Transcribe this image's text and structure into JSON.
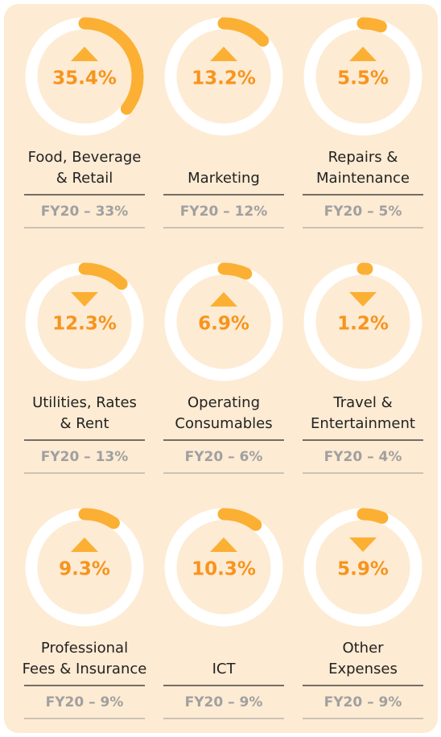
{
  "chart_data": [
    {
      "type": "gauge",
      "label": [
        "Food, Beverage",
        "& Retail"
      ],
      "value": 35.4,
      "value_label": "35.4%",
      "trend": "up",
      "footnote": "FY20 – 33%",
      "ylim": [
        0,
        100
      ],
      "color": "#fbb034"
    },
    {
      "type": "gauge",
      "label": [
        "Marketing"
      ],
      "value": 13.2,
      "value_label": "13.2%",
      "trend": "up",
      "footnote": "FY20 – 12%",
      "ylim": [
        0,
        100
      ],
      "color": "#fbb034"
    },
    {
      "type": "gauge",
      "label": [
        "Repairs &",
        "Maintenance"
      ],
      "value": 5.5,
      "value_label": "5.5%",
      "trend": "up",
      "footnote": "FY20 – 5%",
      "ylim": [
        0,
        100
      ],
      "color": "#fbb034"
    },
    {
      "type": "gauge",
      "label": [
        "Utilities, Rates",
        "& Rent"
      ],
      "value": 12.3,
      "value_label": "12.3%",
      "trend": "down",
      "footnote": "FY20 – 13%",
      "ylim": [
        0,
        100
      ],
      "color": "#fbb034"
    },
    {
      "type": "gauge",
      "label": [
        "Operating",
        "Consumables"
      ],
      "value": 6.9,
      "value_label": "6.9%",
      "trend": "up",
      "footnote": "FY20 – 6%",
      "ylim": [
        0,
        100
      ],
      "color": "#fbb034"
    },
    {
      "type": "gauge",
      "label": [
        "Travel &",
        "Entertainment"
      ],
      "value": 1.2,
      "value_label": "1.2%",
      "trend": "down",
      "footnote": "FY20 – 4%",
      "ylim": [
        0,
        100
      ],
      "color": "#fbb034"
    },
    {
      "type": "gauge",
      "label": [
        "Professional",
        "Fees & Insurance"
      ],
      "value": 9.3,
      "value_label": "9.3%",
      "trend": "up",
      "footnote": "FY20 – 9%",
      "ylim": [
        0,
        100
      ],
      "color": "#fbb034"
    },
    {
      "type": "gauge",
      "label": [
        "ICT"
      ],
      "value": 10.3,
      "value_label": "10.3%",
      "trend": "up",
      "footnote": "FY20 – 9%",
      "ylim": [
        0,
        100
      ],
      "color": "#fbb034"
    },
    {
      "type": "gauge",
      "label": [
        "Other",
        "Expenses"
      ],
      "value": 5.9,
      "value_label": "5.9%",
      "trend": "down",
      "footnote": "FY20 – 9%",
      "ylim": [
        0,
        100
      ],
      "color": "#fbb034"
    }
  ]
}
